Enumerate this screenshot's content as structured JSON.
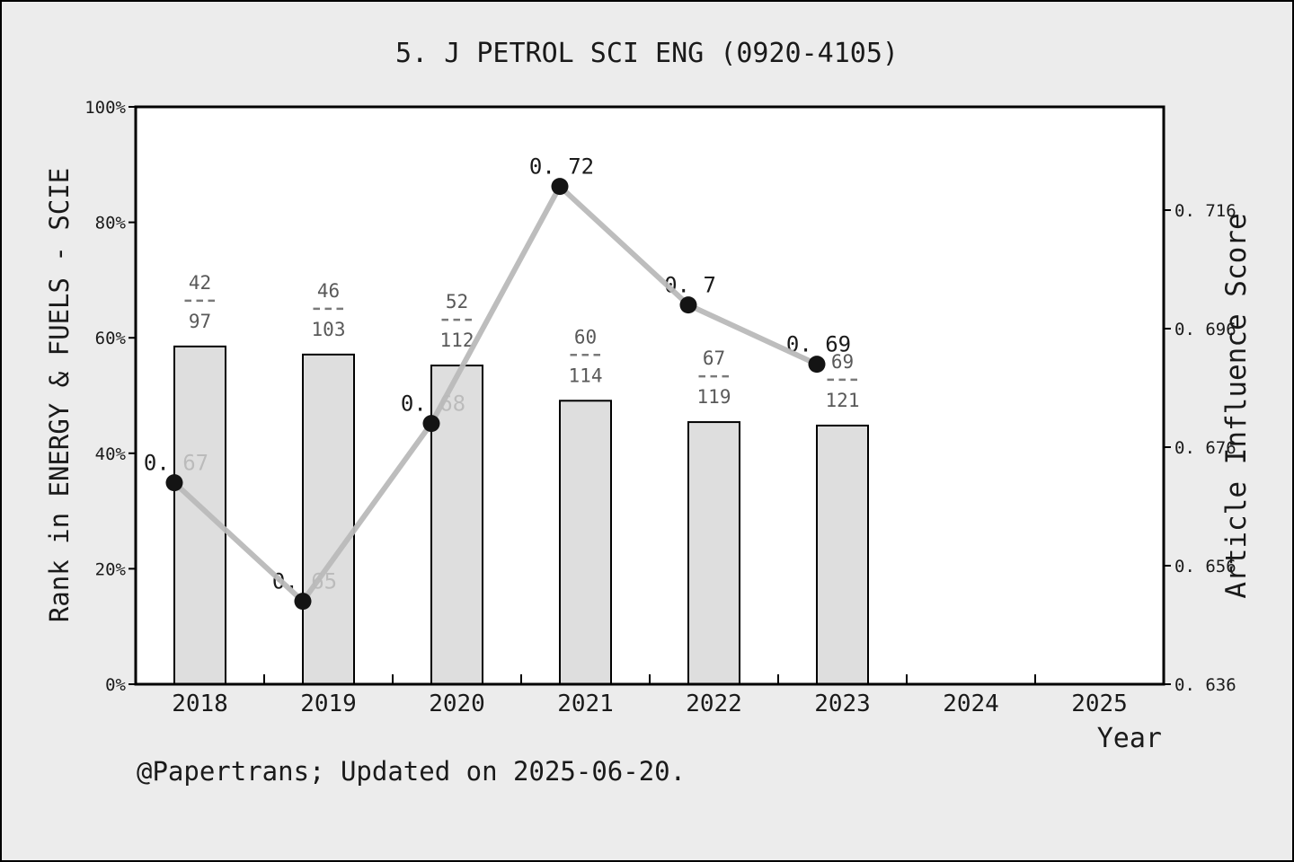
{
  "title": "5. J PETROL SCI ENG (0920-4105)",
  "footer": "@Papertrans; Updated on 2025-06-20.",
  "chart_data": {
    "type": "combo-bar-line",
    "title": "5. J PETROL SCI ENG (0920-4105)",
    "xlabel": "Year",
    "categories": [
      "2018",
      "2019",
      "2020",
      "2021",
      "2022",
      "2023",
      "2024",
      "2025"
    ],
    "left_axis": {
      "label": "Rank in ENERGY & FUELS - SCIE",
      "tick_labels": [
        "0%",
        "20%",
        "40%",
        "60%",
        "80%",
        "100%"
      ],
      "tick_values": [
        0,
        20,
        40,
        60,
        80,
        100
      ],
      "range": [
        0,
        100
      ]
    },
    "right_axis": {
      "label": "Article Influence Score",
      "tick_labels": [
        "0. 636",
        "0. 656",
        "0. 676",
        "0. 696",
        "0. 716"
      ],
      "tick_values": [
        0.636,
        0.656,
        0.676,
        0.696,
        0.716
      ]
    },
    "series": [
      {
        "name": "rank-in-category-bars",
        "type": "bar",
        "categories": [
          "2018",
          "2019",
          "2020",
          "2021",
          "2022",
          "2023"
        ],
        "fraction_labels": [
          {
            "numerator": "42",
            "denominator": "97"
          },
          {
            "numerator": "46",
            "denominator": "103"
          },
          {
            "numerator": "52",
            "denominator": "112"
          },
          {
            "numerator": "60",
            "denominator": "114"
          },
          {
            "numerator": "67",
            "denominator": "119"
          },
          {
            "numerator": "69",
            "denominator": "121"
          }
        ],
        "values_pct": [
          58.5,
          57.1,
          55.2,
          49.1,
          45.4,
          44.8
        ]
      },
      {
        "name": "article-influence-score-line",
        "type": "line",
        "categories": [
          "2018",
          "2019",
          "2020",
          "2021",
          "2022",
          "2023"
        ],
        "values": [
          0.67,
          0.65,
          0.68,
          0.72,
          0.7,
          0.69
        ],
        "point_labels": [
          "0. 67",
          "0. 65",
          "0. 68",
          "0. 72",
          "0. 7",
          "0. 69"
        ]
      }
    ],
    "colors": {
      "background": "#ececec",
      "plot_background": "#ffffff",
      "bar_fill": "#d8d8d8",
      "bar_border": "#000000",
      "line": "#b9b9b9",
      "point": "#141414",
      "fraction_text": "#595959",
      "text": "#1a1a1a"
    }
  }
}
